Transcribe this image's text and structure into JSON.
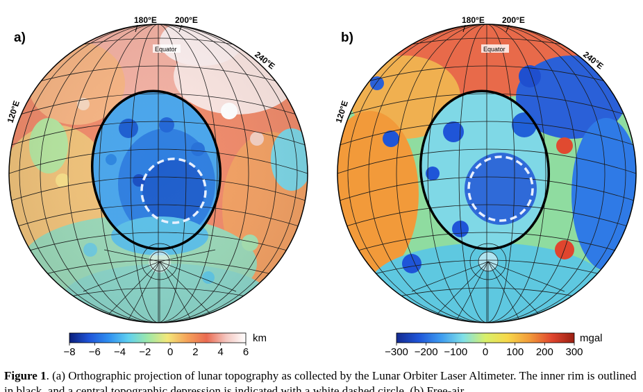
{
  "figure": {
    "panels": [
      {
        "label": "a)",
        "lon_labels": [
          "180°E",
          "200°E",
          "240°E",
          "120°E"
        ],
        "equator_label": "Equator",
        "colorbar": {
          "unit": "km",
          "ticks": [
            "−8",
            "−6",
            "−4",
            "−2",
            "0",
            "2",
            "4",
            "6"
          ],
          "colors": [
            "#0b1e7a",
            "#1f54d8",
            "#2f8ff0",
            "#5fd0f0",
            "#9ee8a8",
            "#f3e87a",
            "#f5a35a",
            "#ea6b52",
            "#f4c6c0",
            "#ffffff"
          ]
        }
      },
      {
        "label": "b)",
        "lon_labels": [
          "180°E",
          "200°E",
          "240°E",
          "120°E"
        ],
        "equator_label": "Equator",
        "colorbar": {
          "unit": "mgal",
          "ticks": [
            "−300",
            "−200",
            "−100",
            "0",
            "100",
            "200",
            "300"
          ],
          "colors": [
            "#142a8f",
            "#1f55d8",
            "#3d9bf0",
            "#7fe0e8",
            "#d8f06a",
            "#f7d84a",
            "#f29a3a",
            "#e0452e",
            "#9a1f12"
          ]
        }
      }
    ],
    "caption": {
      "label": "Figure 1",
      "text": ". (a) Orthographic projection of lunar topography as collected by the Lunar Orbiter Laser Altimeter. The inner rim is outlined in black, and a central topographic depression is indicated with a white dashed circle. (b) Free-air"
    }
  }
}
